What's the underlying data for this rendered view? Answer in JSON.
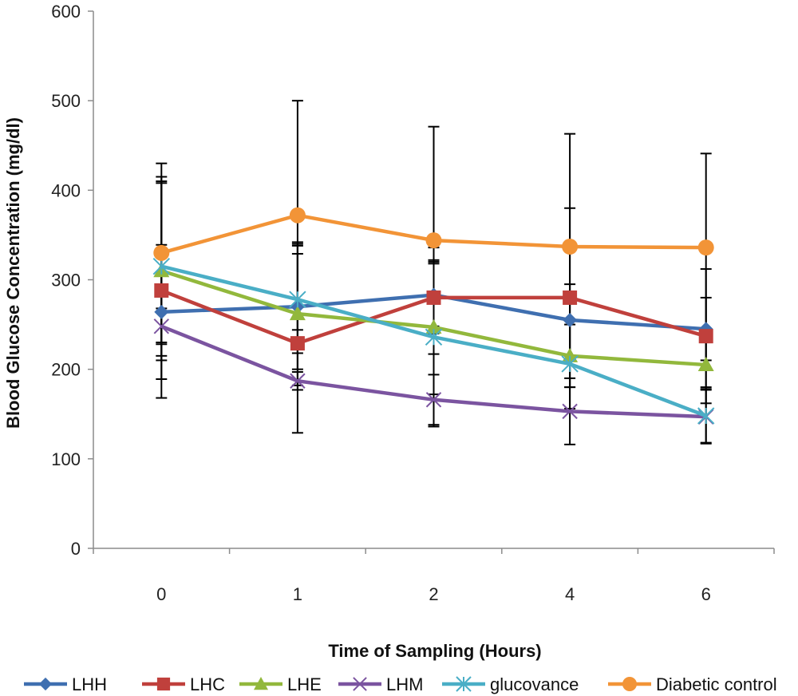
{
  "chart_data": {
    "type": "line",
    "xlabel": "Time of Sampling (Hours)",
    "ylabel": "Blood Glucose Concentration (mg/dl)",
    "ylim": [
      0,
      600
    ],
    "yticks": [
      "0",
      "100",
      "200",
      "300",
      "400",
      "500",
      "600"
    ],
    "categories": [
      "0",
      "1",
      "2",
      "4",
      "6"
    ],
    "grid": false,
    "legend_position": "bottom",
    "series": [
      {
        "name": "LHH",
        "color": "#3f6fb0",
        "marker": "diamond",
        "values": [
          264,
          270,
          283,
          255,
          245
        ],
        "error": [
          75,
          70,
          35,
          40,
          35
        ]
      },
      {
        "name": "LHC",
        "color": "#c0403c",
        "marker": "square",
        "values": [
          288,
          229,
          280,
          280,
          237
        ],
        "error": [
          120,
          100,
          40,
          100,
          75
        ]
      },
      {
        "name": "LHE",
        "color": "#92b83c",
        "marker": "triangle",
        "values": [
          310,
          262,
          247,
          215,
          205
        ],
        "error": [
          100,
          80,
          75,
          35,
          25
        ]
      },
      {
        "name": "LHM",
        "color": "#7b54a0",
        "marker": "x",
        "values": [
          248,
          187,
          166,
          153,
          147
        ],
        "error": [
          20,
          10,
          28,
          37,
          30
        ]
      },
      {
        "name": "glucovance",
        "color": "#4aaec6",
        "marker": "asterisk",
        "values": [
          315,
          278,
          236,
          206,
          148
        ],
        "error": [
          100,
          60,
          100,
          50,
          30
        ]
      },
      {
        "name": "Diabetic control",
        "color": "#f29437",
        "marker": "circle",
        "values": [
          330,
          372,
          344,
          337,
          336
        ],
        "error": [
          100,
          128,
          127,
          126,
          105
        ]
      }
    ]
  }
}
